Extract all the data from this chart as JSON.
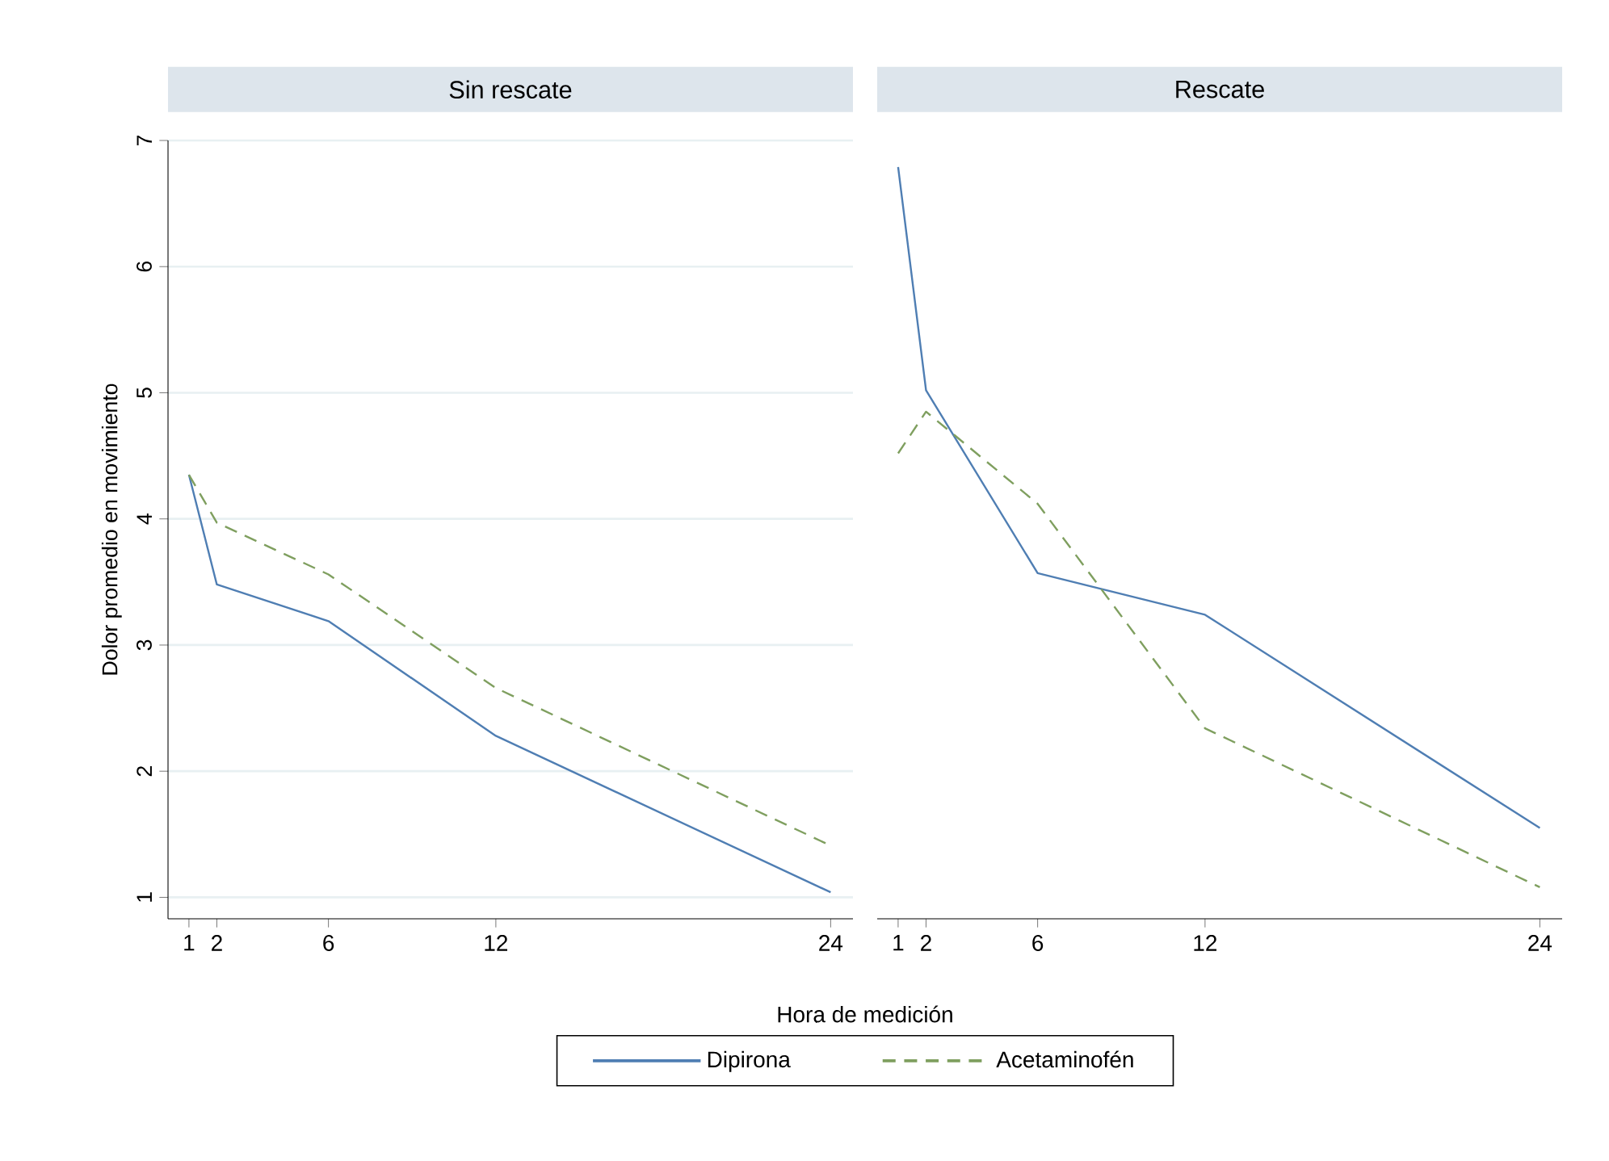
{
  "chart_data": [
    {
      "type": "line",
      "title": "Sin rescate",
      "xlabel": "Hora de medición",
      "ylabel": "Dolor promedio en movimiento",
      "x": [
        1,
        2,
        6,
        12,
        24
      ],
      "series": [
        {
          "name": "Dipirona",
          "color": "#4f7eb3",
          "line_style": "solid",
          "values": [
            4.35,
            3.48,
            3.19,
            2.28,
            1.04
          ]
        },
        {
          "name": "Acetaminofén",
          "color": "#7f9f5f",
          "line_style": "dashed",
          "values": [
            4.35,
            3.97,
            3.56,
            2.66,
            1.41
          ]
        }
      ],
      "xlim": [
        0.25,
        24.8
      ],
      "ylim": [
        0.83,
        7
      ],
      "xticks": [
        1,
        2,
        6,
        12,
        24
      ],
      "yticks": [
        1,
        2,
        3,
        4,
        5,
        6,
        7
      ],
      "grid": "y",
      "legend": "bottom"
    },
    {
      "type": "line",
      "title": "Rescate",
      "x": [
        1,
        2,
        6,
        12,
        24
      ],
      "series": [
        {
          "color": "#4f7eb3",
          "line_style": "solid",
          "values": [
            6.79,
            5.02,
            3.57,
            3.24,
            1.55
          ]
        },
        {
          "color": "#7f9f5f",
          "line_style": "dashed",
          "values": [
            4.52,
            4.85,
            4.12,
            2.34,
            1.08
          ]
        }
      ],
      "xlim": [
        0.25,
        24.8
      ],
      "ylim": [
        0.83,
        7
      ],
      "xticks": [
        1,
        2,
        6,
        12,
        24
      ],
      "yticks": [
        1,
        2,
        3,
        4,
        5,
        6,
        7
      ],
      "grid": "y",
      "tick_labels": "x"
    }
  ]
}
